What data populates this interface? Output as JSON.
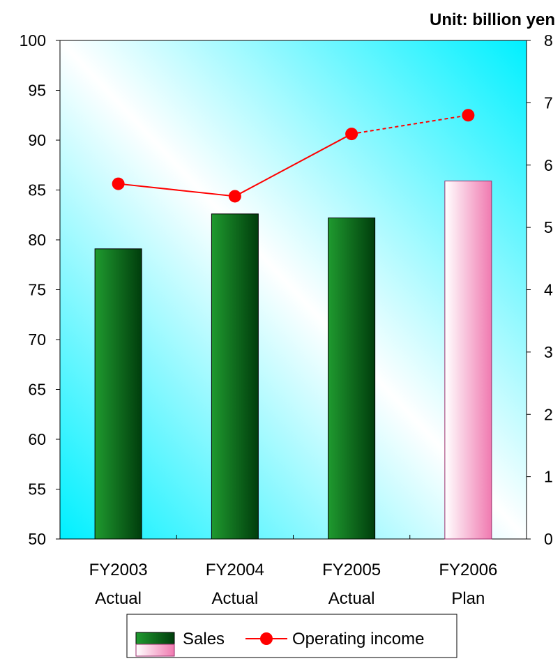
{
  "unit_label": "Unit: billion yen",
  "legend": {
    "sales_label": "Sales",
    "operating_income_label": "Operating income"
  },
  "colors": {
    "plot_bg_light": "#ffffff",
    "plot_bg_cyan": "#00f0ff",
    "bar_actual_light": "#1f9a2f",
    "bar_actual_dark": "#003d0c",
    "bar_plan_light": "#ffffff",
    "bar_plan_dark": "#f07ab0",
    "bar_plan_border": "#9c2c6c",
    "line_color": "#ff0000"
  },
  "chart_data": {
    "type": "bar",
    "categories": [
      [
        "FY2003",
        "Actual"
      ],
      [
        "FY2004",
        "Actual"
      ],
      [
        "FY2005",
        "Actual"
      ],
      [
        "FY2006",
        "Plan"
      ]
    ],
    "series": [
      {
        "name": "Sales",
        "type": "bar",
        "axis": "left",
        "values": [
          79.1,
          82.6,
          82.2,
          85.9
        ],
        "plan_flags": [
          false,
          false,
          false,
          true
        ]
      },
      {
        "name": "Operating income",
        "type": "line",
        "axis": "right",
        "values": [
          5.7,
          5.5,
          6.5,
          6.8
        ],
        "segment_styles": [
          "solid",
          "solid",
          "dashed"
        ]
      }
    ],
    "left_axis": {
      "min": 50,
      "max": 100,
      "ticks": [
        50,
        55,
        60,
        65,
        70,
        75,
        80,
        85,
        90,
        95,
        100
      ]
    },
    "right_axis": {
      "min": 0,
      "max": 8,
      "ticks": [
        0,
        1,
        2,
        3,
        4,
        5,
        6,
        7,
        8
      ]
    },
    "grid": false,
    "legend_position": "bottom"
  }
}
